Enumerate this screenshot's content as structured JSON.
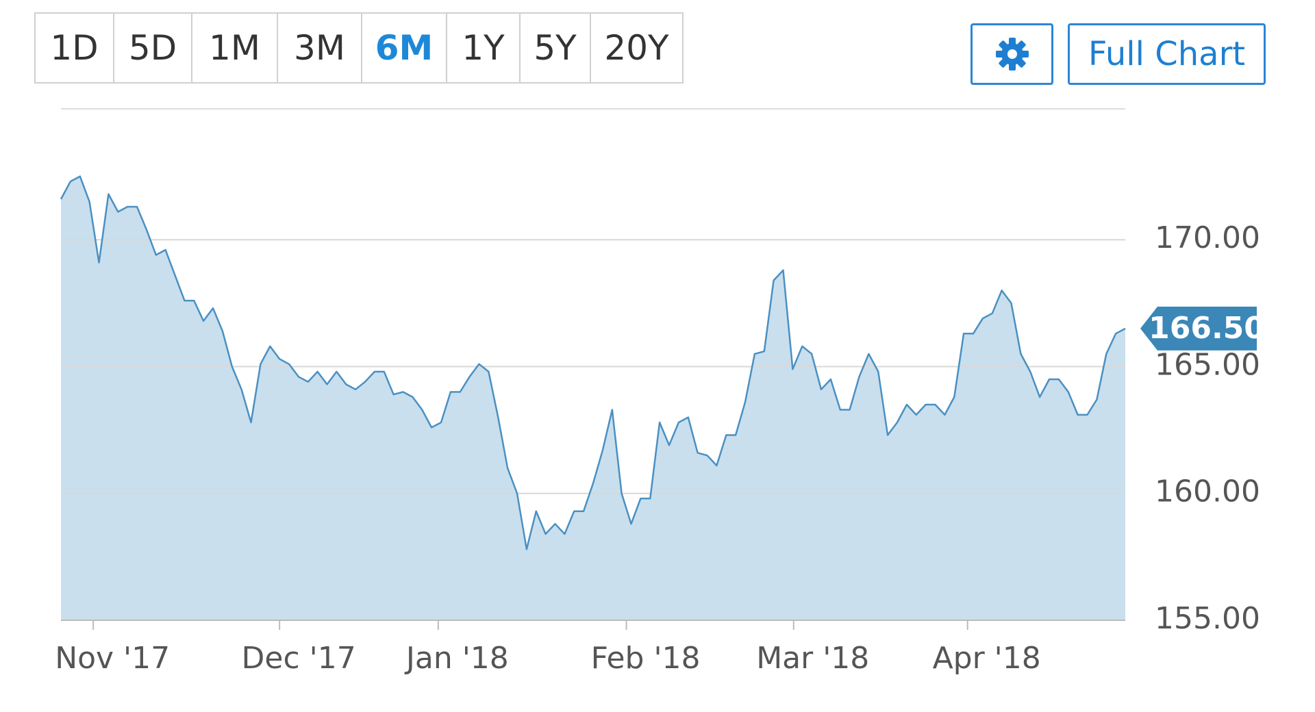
{
  "range_buttons": [
    "1D",
    "5D",
    "1M",
    "3M",
    "6M",
    "1Y",
    "5Y",
    "20Y"
  ],
  "selected_range": 4,
  "full_chart_button": "Full Chart",
  "chart_data": {
    "type": "area",
    "values": [
      171.6,
      172.3,
      172.5,
      171.5,
      169.1,
      171.8,
      171.1,
      171.3,
      171.3,
      170.4,
      169.4,
      169.6,
      168.6,
      167.6,
      167.6,
      166.8,
      167.3,
      166.4,
      165.0,
      164.1,
      162.8,
      165.1,
      165.8,
      165.3,
      165.1,
      164.6,
      164.4,
      164.8,
      164.3,
      164.8,
      164.3,
      164.1,
      164.4,
      164.8,
      164.8,
      163.9,
      164.0,
      163.8,
      163.3,
      162.6,
      162.8,
      164.0,
      164.0,
      164.6,
      165.1,
      164.8,
      163.0,
      161.0,
      160.0,
      157.8,
      159.3,
      158.4,
      158.8,
      158.4,
      159.3,
      159.3,
      160.4,
      161.7,
      163.3,
      160.0,
      158.8,
      159.8,
      159.8,
      162.8,
      161.9,
      162.8,
      163.0,
      161.6,
      161.5,
      161.1,
      162.3,
      162.3,
      163.6,
      165.5,
      165.6,
      168.4,
      168.8,
      164.9,
      165.8,
      165.5,
      164.1,
      164.5,
      163.3,
      163.3,
      164.6,
      165.5,
      164.8,
      162.3,
      162.8,
      163.5,
      163.1,
      163.5,
      163.5,
      163.1,
      163.8,
      166.3,
      166.3,
      166.9,
      167.1,
      168.0,
      167.5,
      165.5,
      164.8,
      163.8,
      164.5,
      164.5,
      164.0,
      163.1,
      163.1,
      163.7,
      165.5,
      166.3,
      166.5
    ],
    "last_value_label": "166.50",
    "line_color": "#4a90c2",
    "fill_color": "#c9dfee",
    "xlim": [
      0,
      112
    ],
    "xticks": [
      {
        "value": 3.4,
        "label": "Nov '17"
      },
      {
        "value": 23.0,
        "label": "Dec '17"
      },
      {
        "value": 39.7,
        "label": "Jan '18"
      },
      {
        "value": 59.5,
        "label": "Feb '18"
      },
      {
        "value": 77.1,
        "label": "Mar '18"
      },
      {
        "value": 95.4,
        "label": "Apr '18"
      }
    ],
    "ylim": [
      155,
      175.16
    ],
    "yticks": [
      {
        "value": 155,
        "label": "155.00"
      },
      {
        "value": 160,
        "label": "160.00"
      },
      {
        "value": 165,
        "label": "165.00"
      },
      {
        "value": 170,
        "label": "170.00"
      }
    ],
    "grid": true
  }
}
